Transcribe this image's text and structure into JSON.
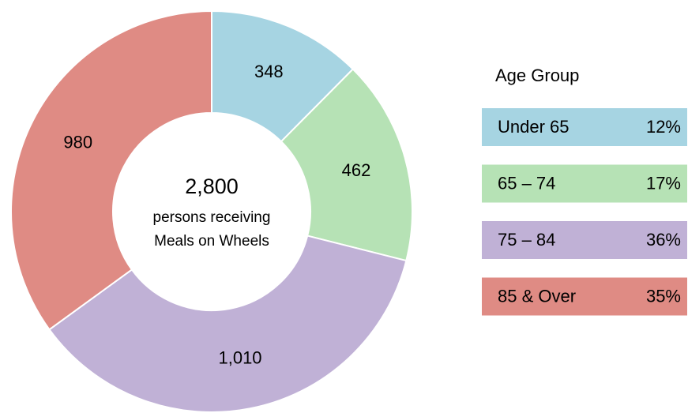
{
  "chart_data": {
    "type": "donut",
    "categories": [
      "Under 65",
      "65 – 74",
      "75 – 84",
      "85 & Over"
    ],
    "values": [
      348,
      462,
      1010,
      980
    ],
    "value_labels": [
      "348",
      "462",
      "1,010",
      "980"
    ],
    "colors": [
      "#a6d4e2",
      "#b6e2b5",
      "#c0b1d6",
      "#df8b84"
    ],
    "legend_title": "Age Group",
    "legend_percent_labels": [
      "12%",
      "17%",
      "36%",
      "35%"
    ],
    "center_text": {
      "total": "2,800",
      "line1": "persons receiving",
      "line2": "Meals on Wheels"
    }
  }
}
